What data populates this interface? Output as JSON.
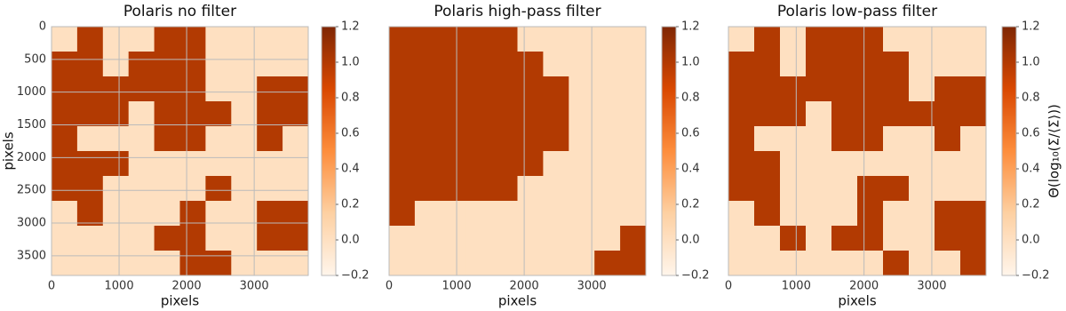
{
  "chart_data": [
    {
      "type": "heatmap",
      "title": "Polaris no filter",
      "x_label": "pixels",
      "y_label": "pixels",
      "xlim": [
        0,
        3800
      ],
      "ylim": [
        3800,
        0
      ],
      "xticks": [
        0,
        1000,
        2000,
        3000
      ],
      "yticks": [
        0,
        500,
        1000,
        1500,
        2000,
        2500,
        3000,
        3500
      ],
      "grid": true,
      "z": [
        [
          0,
          1,
          0,
          0,
          1,
          1,
          0,
          0,
          0,
          0
        ],
        [
          1,
          1,
          0,
          1,
          1,
          1,
          0,
          0,
          0,
          0
        ],
        [
          1,
          1,
          1,
          1,
          1,
          1,
          0,
          0,
          1,
          1
        ],
        [
          1,
          1,
          1,
          0,
          1,
          1,
          1,
          0,
          1,
          1
        ],
        [
          1,
          0,
          0,
          0,
          1,
          1,
          0,
          0,
          1,
          0
        ],
        [
          1,
          1,
          1,
          0,
          0,
          0,
          0,
          0,
          0,
          0
        ],
        [
          1,
          1,
          0,
          0,
          0,
          0,
          1,
          0,
          0,
          0
        ],
        [
          0,
          1,
          0,
          0,
          0,
          1,
          0,
          0,
          1,
          1
        ],
        [
          0,
          0,
          0,
          0,
          1,
          1,
          0,
          0,
          1,
          1
        ],
        [
          0,
          0,
          0,
          0,
          0,
          1,
          1,
          0,
          0,
          0
        ]
      ],
      "clim": [
        -0.2,
        1.2
      ],
      "cticks": [
        {
          "value": -0.2,
          "label": "−0.2"
        },
        {
          "value": 0,
          "label": "0.0"
        },
        {
          "value": 0.2,
          "label": "0.2"
        },
        {
          "value": 0.4,
          "label": "0.4"
        },
        {
          "value": 0.6,
          "label": "0.6"
        },
        {
          "value": 0.8,
          "label": "0.8"
        },
        {
          "value": 1,
          "label": "1.0"
        },
        {
          "value": 1.2,
          "label": "1.2"
        }
      ],
      "colorscale": [
        "#fff5eb",
        "#fdd0a2",
        "#fd8d3c",
        "#d94801",
        "#7f2704"
      ]
    },
    {
      "type": "heatmap",
      "title": "Polaris high-pass filter",
      "x_label": "pixels",
      "xlim": [
        0,
        3800
      ],
      "ylim": [
        3800,
        0
      ],
      "xticks": [
        0,
        1000,
        2000,
        3000
      ],
      "grid": true,
      "z": [
        [
          1,
          1,
          1,
          1,
          1,
          0,
          0,
          0,
          0,
          0
        ],
        [
          1,
          1,
          1,
          1,
          1,
          1,
          0,
          0,
          0,
          0
        ],
        [
          1,
          1,
          1,
          1,
          1,
          1,
          1,
          0,
          0,
          0
        ],
        [
          1,
          1,
          1,
          1,
          1,
          1,
          1,
          0,
          0,
          0
        ],
        [
          1,
          1,
          1,
          1,
          1,
          1,
          1,
          0,
          0,
          0
        ],
        [
          1,
          1,
          1,
          1,
          1,
          1,
          0,
          0,
          0,
          0
        ],
        [
          1,
          1,
          1,
          1,
          1,
          0,
          0,
          0,
          0,
          0
        ],
        [
          1,
          0,
          0,
          0,
          0,
          0,
          0,
          0,
          0,
          0
        ],
        [
          0,
          0,
          0,
          0,
          0,
          0,
          0,
          0,
          0,
          1
        ],
        [
          0,
          0,
          0,
          0,
          0,
          0,
          0,
          0,
          1,
          1
        ]
      ],
      "clim": [
        -0.2,
        1.2
      ],
      "cticks": [
        {
          "value": -0.2,
          "label": "−0.2"
        },
        {
          "value": 0,
          "label": "0.0"
        },
        {
          "value": 0.2,
          "label": "0.2"
        },
        {
          "value": 0.4,
          "label": "0.4"
        },
        {
          "value": 0.6,
          "label": "0.6"
        },
        {
          "value": 0.8,
          "label": "0.8"
        },
        {
          "value": 1,
          "label": "1.0"
        },
        {
          "value": 1.2,
          "label": "1.2"
        }
      ],
      "colorscale": [
        "#fff5eb",
        "#fdd0a2",
        "#fd8d3c",
        "#d94801",
        "#7f2704"
      ]
    },
    {
      "type": "heatmap",
      "title": "Polaris low-pass filter",
      "x_label": "pixels",
      "colorbar_label": "Θ(log₁₀(Σ/⟨Σ⟩))",
      "xlim": [
        0,
        3800
      ],
      "ylim": [
        3800,
        0
      ],
      "xticks": [
        0,
        1000,
        2000,
        3000
      ],
      "grid": true,
      "z": [
        [
          0,
          1,
          0,
          1,
          1,
          1,
          0,
          0,
          0,
          0
        ],
        [
          1,
          1,
          0,
          1,
          1,
          1,
          1,
          0,
          0,
          0
        ],
        [
          1,
          1,
          1,
          1,
          1,
          1,
          1,
          0,
          1,
          1
        ],
        [
          1,
          1,
          1,
          0,
          1,
          1,
          1,
          1,
          1,
          1
        ],
        [
          1,
          0,
          0,
          0,
          1,
          1,
          0,
          0,
          1,
          0
        ],
        [
          1,
          1,
          0,
          0,
          0,
          0,
          0,
          0,
          0,
          0
        ],
        [
          1,
          1,
          0,
          0,
          0,
          1,
          1,
          0,
          0,
          0
        ],
        [
          0,
          1,
          0,
          0,
          0,
          1,
          0,
          0,
          1,
          1
        ],
        [
          0,
          0,
          1,
          0,
          1,
          1,
          0,
          0,
          1,
          1
        ],
        [
          0,
          0,
          0,
          0,
          0,
          0,
          1,
          0,
          0,
          1
        ]
      ],
      "clim": [
        -0.2,
        1.2
      ],
      "cticks": [
        {
          "value": -0.2,
          "label": "−0.2"
        },
        {
          "value": 0,
          "label": "0.0"
        },
        {
          "value": 0.2,
          "label": "0.2"
        },
        {
          "value": 0.4,
          "label": "0.4"
        },
        {
          "value": 0.6,
          "label": "0.6"
        },
        {
          "value": 0.8,
          "label": "0.8"
        },
        {
          "value": 1,
          "label": "1.0"
        },
        {
          "value": 1.2,
          "label": "1.2"
        }
      ],
      "colorscale": [
        "#fff5eb",
        "#fdd0a2",
        "#fd8d3c",
        "#d94801",
        "#7f2704"
      ]
    }
  ]
}
